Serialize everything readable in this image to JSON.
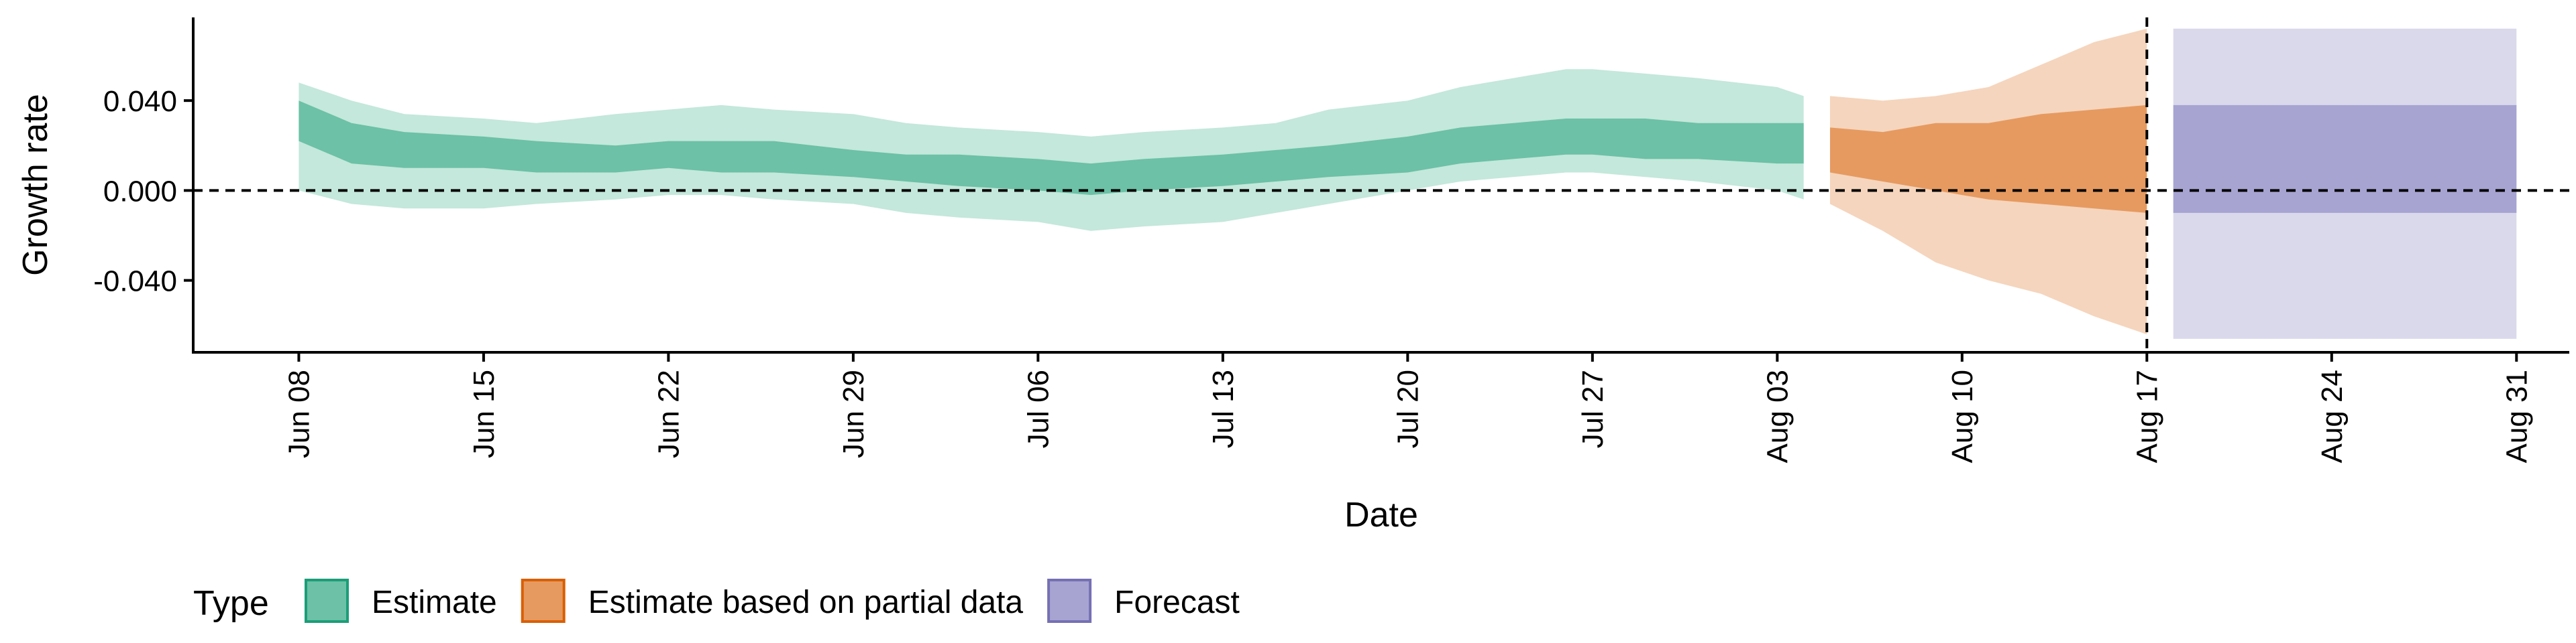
{
  "chart_data": {
    "type": "area",
    "xlabel": "Date",
    "ylabel": "Growth rate",
    "x_ticks": [
      "Jun 08",
      "Jun 15",
      "Jun 22",
      "Jun 29",
      "Jul 06",
      "Jul 13",
      "Jul 20",
      "Jul 27",
      "Aug 03",
      "Aug 10",
      "Aug 17",
      "Aug 24",
      "Aug 31"
    ],
    "y_ticks": [
      "0.040",
      "0.000",
      "-0.040"
    ],
    "y_tick_values": [
      0.04,
      0.0,
      -0.04
    ],
    "ylim": [
      -0.072,
      0.077
    ],
    "xlim": [
      "2020-06-04",
      "2020-09-02"
    ],
    "reference_lines": {
      "horizontal_y": 0.0,
      "vertical_date": "2020-08-17"
    },
    "legend": {
      "title": "Type",
      "position": "bottom-left",
      "entries": [
        {
          "label": "Estimate",
          "color": "#1b9e77"
        },
        {
          "label": "Estimate based on partial data",
          "color": "#d95f02"
        },
        {
          "label": "Forecast",
          "color": "#7570b3"
        }
      ]
    },
    "series": [
      {
        "name": "Estimate",
        "fill": "#66c2a5",
        "outer_fill": "#c4e8db",
        "inner_fill": "#6cc1a6",
        "x": [
          "2020-06-08",
          "2020-06-10",
          "2020-06-12",
          "2020-06-15",
          "2020-06-17",
          "2020-06-20",
          "2020-06-22",
          "2020-06-24",
          "2020-06-26",
          "2020-06-29",
          "2020-07-01",
          "2020-07-03",
          "2020-07-06",
          "2020-07-08",
          "2020-07-10",
          "2020-07-13",
          "2020-07-15",
          "2020-07-17",
          "2020-07-20",
          "2020-07-22",
          "2020-07-24",
          "2020-07-26",
          "2020-07-27",
          "2020-07-29",
          "2020-07-31",
          "2020-08-03",
          "2020-08-04"
        ],
        "outer_upper": [
          0.048,
          0.04,
          0.034,
          0.032,
          0.03,
          0.034,
          0.036,
          0.038,
          0.036,
          0.034,
          0.03,
          0.028,
          0.026,
          0.024,
          0.026,
          0.028,
          0.03,
          0.036,
          0.04,
          0.046,
          0.05,
          0.054,
          0.054,
          0.052,
          0.05,
          0.046,
          0.042
        ],
        "inner_upper": [
          0.04,
          0.03,
          0.026,
          0.024,
          0.022,
          0.02,
          0.022,
          0.022,
          0.022,
          0.018,
          0.016,
          0.016,
          0.014,
          0.012,
          0.014,
          0.016,
          0.018,
          0.02,
          0.024,
          0.028,
          0.03,
          0.032,
          0.032,
          0.032,
          0.03,
          0.03,
          0.03
        ],
        "inner_lower": [
          0.022,
          0.012,
          0.01,
          0.01,
          0.008,
          0.008,
          0.01,
          0.008,
          0.008,
          0.006,
          0.004,
          0.002,
          0.0,
          -0.002,
          0.0,
          0.002,
          0.004,
          0.006,
          0.008,
          0.012,
          0.014,
          0.016,
          0.016,
          0.014,
          0.014,
          0.012,
          0.012
        ],
        "outer_lower": [
          0.0,
          -0.006,
          -0.008,
          -0.008,
          -0.006,
          -0.004,
          -0.002,
          -0.002,
          -0.004,
          -0.006,
          -0.01,
          -0.012,
          -0.014,
          -0.018,
          -0.016,
          -0.014,
          -0.01,
          -0.006,
          0.0,
          0.004,
          0.006,
          0.008,
          0.008,
          0.006,
          0.004,
          0.0,
          -0.004
        ]
      },
      {
        "name": "Estimate based on partial data",
        "fill": "#fc8d62",
        "outer_fill": "#f5d5bd",
        "inner_fill": "#e69a60",
        "x": [
          "2020-08-05",
          "2020-08-07",
          "2020-08-09",
          "2020-08-11",
          "2020-08-13",
          "2020-08-15",
          "2020-08-17"
        ],
        "outer_upper": [
          0.042,
          0.04,
          0.042,
          0.046,
          0.056,
          0.066,
          0.072
        ],
        "inner_upper": [
          0.028,
          0.026,
          0.03,
          0.03,
          0.034,
          0.036,
          0.038
        ],
        "inner_lower": [
          0.008,
          0.004,
          0.0,
          -0.004,
          -0.006,
          -0.008,
          -0.01
        ],
        "outer_lower": [
          -0.006,
          -0.018,
          -0.032,
          -0.04,
          -0.046,
          -0.056,
          -0.064
        ]
      },
      {
        "name": "Forecast",
        "fill": "#8da0cb",
        "outer_fill": "#dad9ec",
        "inner_fill": "#a7a4d2",
        "x": [
          "2020-08-18",
          "2020-08-31"
        ],
        "outer_upper": [
          0.072,
          0.072
        ],
        "inner_upper": [
          0.038,
          0.038
        ],
        "inner_lower": [
          -0.01,
          -0.01
        ],
        "outer_lower": [
          -0.066,
          -0.066
        ]
      }
    ]
  }
}
